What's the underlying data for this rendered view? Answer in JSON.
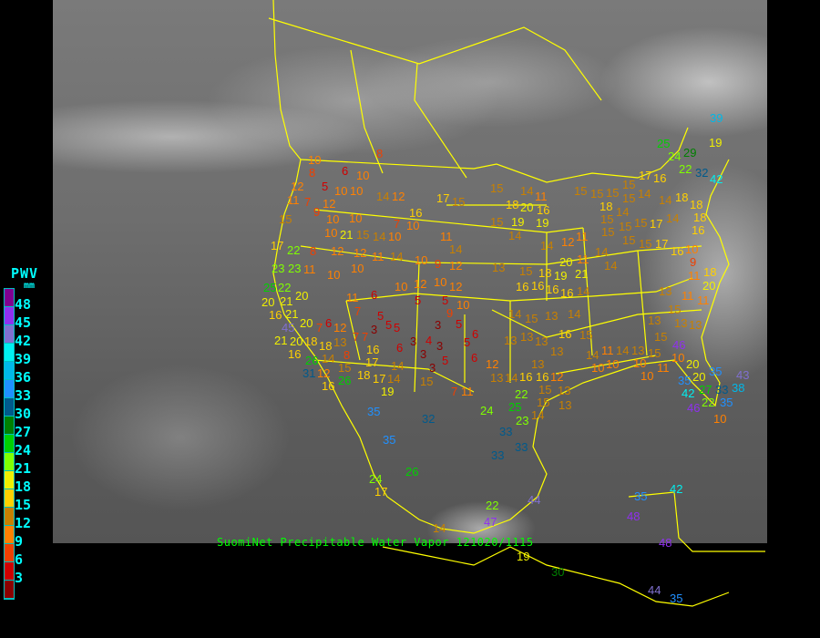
{
  "legend": {
    "title": "PWV",
    "unit": "mm",
    "labels": [
      "48",
      "45",
      "42",
      "39",
      "36",
      "33",
      "30",
      "27",
      "24",
      "21",
      "18",
      "15",
      "12",
      "9",
      "6",
      "3"
    ],
    "colors": [
      "#800090",
      "#9030f0",
      "#8070d0",
      "#00f0f0",
      "#00b8e8",
      "#2090ff",
      "#005a8c",
      "#008000",
      "#00d000",
      "#80ff00",
      "#f0f000",
      "#ffd000",
      "#c88000",
      "#ff8000",
      "#f04000",
      "#d00000",
      "#8b0000"
    ]
  },
  "caption": "SuomiNet Precipitable Water Vapor 121020/1115",
  "boundary_color": "#ffff00",
  "stations": [
    8,
    10,
    8,
    6,
    10,
    5,
    12,
    10,
    10,
    14,
    12,
    16,
    11,
    9,
    7,
    12,
    10,
    10,
    15,
    10,
    21,
    15,
    14,
    10,
    7,
    10,
    17,
    15,
    11,
    14,
    10,
    17,
    22,
    8,
    12,
    12,
    11,
    14,
    23,
    23,
    11,
    10,
    10,
    9,
    12,
    12,
    6,
    11,
    7,
    10,
    5,
    5,
    10,
    12,
    10,
    9,
    5,
    5,
    5,
    3,
    5,
    4,
    3,
    3,
    3,
    5,
    3,
    5,
    6,
    6,
    8,
    7,
    7,
    3,
    6,
    14,
    6,
    7,
    12,
    21,
    20,
    20,
    18,
    18,
    14,
    13,
    16,
    17,
    12,
    15,
    18,
    17,
    14,
    19,
    15,
    7,
    11,
    12,
    13,
    14,
    16,
    16,
    15,
    13,
    12,
    13,
    13,
    15,
    18,
    19,
    20,
    16,
    16,
    16,
    16,
    14,
    14,
    15,
    13,
    14,
    16,
    15,
    14,
    11,
    14,
    10,
    10,
    13,
    15,
    15,
    13,
    13,
    13,
    15,
    11,
    11,
    9,
    18,
    13,
    11,
    13,
    13,
    13,
    13,
    22,
    25,
    15,
    13,
    14,
    24,
    15,
    14,
    11,
    18,
    20,
    16,
    19,
    15,
    19,
    14,
    14,
    12,
    14,
    11,
    14,
    11,
    15,
    15,
    15,
    18,
    15,
    14,
    15,
    15,
    15,
    15,
    15,
    15,
    17,
    17,
    15,
    14,
    14,
    18,
    18,
    16,
    18,
    16,
    16,
    10,
    20,
    24,
    22,
    29,
    25,
    32,
    42,
    39,
    19,
    17,
    14,
    21,
    20,
    20,
    27,
    35,
    35,
    33,
    22,
    42,
    35,
    38,
    46,
    43,
    10,
    10,
    11,
    10,
    10,
    46,
    22,
    25,
    21,
    20,
    16,
    45,
    20,
    21,
    16,
    26,
    31,
    16,
    26,
    35,
    35,
    26,
    24,
    17,
    32,
    33,
    33,
    33,
    23,
    22,
    47,
    44,
    14,
    19,
    30,
    44,
    35,
    35,
    42,
    48,
    48
  ]
}
